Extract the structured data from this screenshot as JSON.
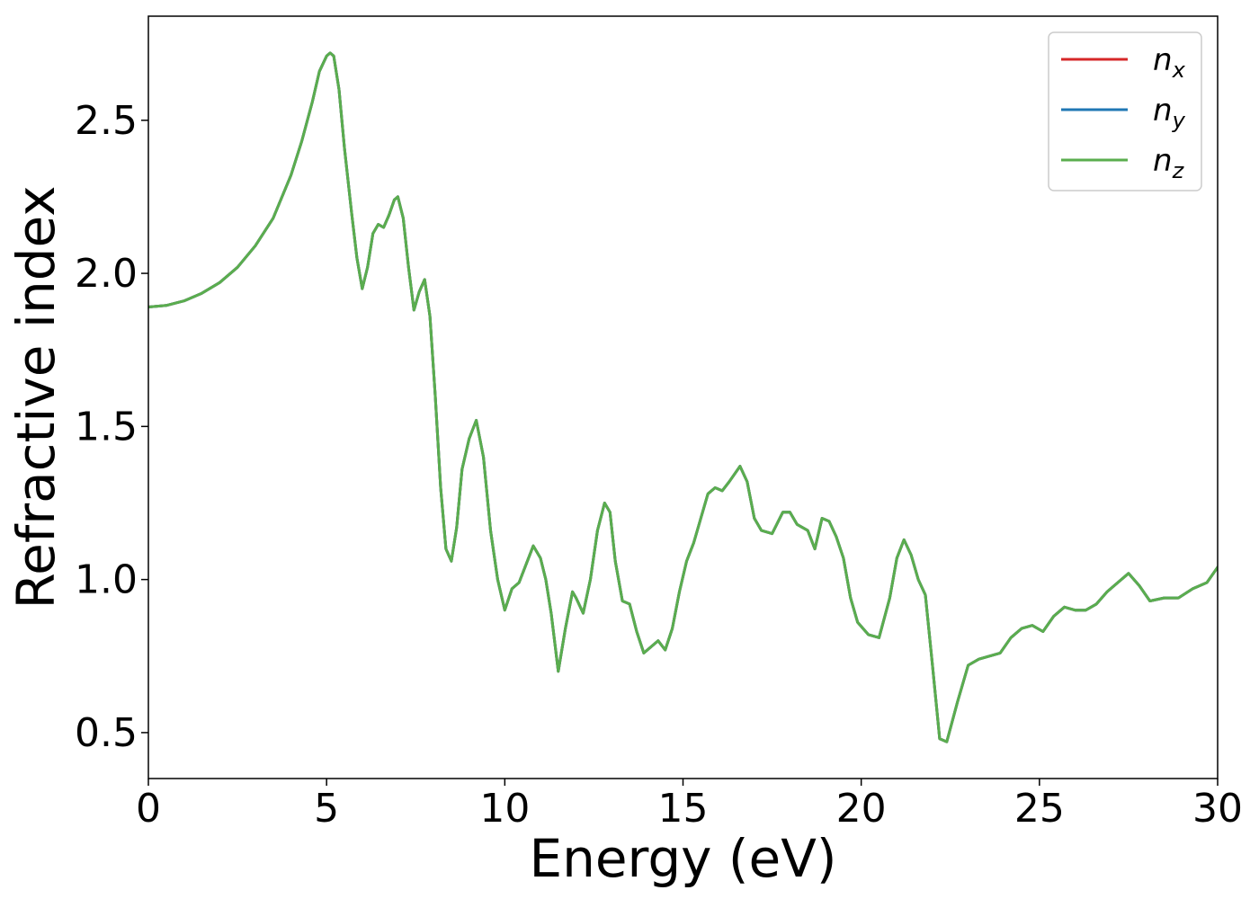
{
  "chart_data": {
    "type": "line",
    "title": "",
    "xlabel": "Energy (eV)",
    "ylabel": "Refractive index",
    "xlim": [
      0,
      30
    ],
    "ylim": [
      0.35,
      2.84
    ],
    "xticks": [
      0,
      5,
      10,
      15,
      20,
      25,
      30
    ],
    "xtick_labels": [
      "0",
      "5",
      "10",
      "15",
      "20",
      "25",
      "30"
    ],
    "yticks": [
      0.5,
      1.0,
      1.5,
      2.0,
      2.5
    ],
    "ytick_labels": [
      "0.5",
      "1.0",
      "1.5",
      "2.0",
      "2.5"
    ],
    "grid": false,
    "legend_position": "top-right",
    "series": [
      {
        "name": "n",
        "subscript": "x",
        "color": "#d62728",
        "x": [
          0,
          0.5,
          1,
          1.5,
          2,
          2.5,
          3,
          3.5,
          4,
          4.3,
          4.6,
          4.8,
          5.0,
          5.1,
          5.2,
          5.35,
          5.5,
          5.7,
          5.85,
          6.0,
          6.15,
          6.3,
          6.45,
          6.6,
          6.75,
          6.9,
          7.0,
          7.15,
          7.3,
          7.45,
          7.6,
          7.75,
          7.9,
          8.05,
          8.2,
          8.35,
          8.5,
          8.65,
          8.8,
          9.0,
          9.2,
          9.4,
          9.6,
          9.8,
          10.0,
          10.2,
          10.4,
          10.6,
          10.8,
          11.0,
          11.15,
          11.3,
          11.5,
          11.7,
          11.9,
          12.0,
          12.2,
          12.4,
          12.6,
          12.8,
          12.95,
          13.1,
          13.3,
          13.5,
          13.7,
          13.9,
          14.1,
          14.3,
          14.5,
          14.7,
          14.9,
          15.1,
          15.3,
          15.5,
          15.7,
          15.9,
          16.1,
          16.3,
          16.6,
          16.8,
          17.0,
          17.2,
          17.5,
          17.8,
          18.0,
          18.2,
          18.5,
          18.7,
          18.9,
          19.1,
          19.3,
          19.5,
          19.7,
          19.9,
          20.2,
          20.5,
          20.8,
          21.0,
          21.2,
          21.4,
          21.6,
          21.8,
          22.0,
          22.2,
          22.4,
          22.7,
          23.0,
          23.3,
          23.6,
          23.9,
          24.2,
          24.5,
          24.8,
          25.1,
          25.4,
          25.7,
          26.0,
          26.3,
          26.6,
          26.9,
          27.2,
          27.5,
          27.8,
          28.1,
          28.5,
          28.9,
          29.3,
          29.7,
          30.0
        ],
        "y": [
          1.89,
          1.895,
          1.91,
          1.935,
          1.97,
          2.02,
          2.09,
          2.18,
          2.32,
          2.43,
          2.56,
          2.66,
          2.71,
          2.72,
          2.71,
          2.6,
          2.41,
          2.2,
          2.05,
          1.95,
          2.02,
          2.13,
          2.16,
          2.15,
          2.19,
          2.24,
          2.25,
          2.18,
          2.02,
          1.88,
          1.94,
          1.98,
          1.86,
          1.6,
          1.3,
          1.1,
          1.06,
          1.17,
          1.36,
          1.46,
          1.52,
          1.4,
          1.16,
          1.0,
          0.9,
          0.97,
          0.99,
          1.05,
          1.11,
          1.07,
          1.0,
          0.89,
          0.7,
          0.84,
          0.96,
          0.94,
          0.89,
          1.0,
          1.16,
          1.25,
          1.22,
          1.06,
          0.93,
          0.92,
          0.83,
          0.76,
          0.78,
          0.8,
          0.77,
          0.84,
          0.96,
          1.06,
          1.12,
          1.2,
          1.28,
          1.3,
          1.29,
          1.32,
          1.37,
          1.32,
          1.2,
          1.16,
          1.15,
          1.22,
          1.22,
          1.18,
          1.16,
          1.1,
          1.2,
          1.19,
          1.14,
          1.07,
          0.94,
          0.86,
          0.82,
          0.81,
          0.94,
          1.07,
          1.13,
          1.08,
          1.0,
          0.95,
          0.72,
          0.48,
          0.47,
          0.6,
          0.72,
          0.74,
          0.75,
          0.76,
          0.81,
          0.84,
          0.85,
          0.83,
          0.88,
          0.91,
          0.9,
          0.9,
          0.92,
          0.96,
          0.99,
          1.02,
          0.98,
          0.93,
          0.94,
          0.94,
          0.97,
          0.99,
          1.04
        ]
      },
      {
        "name": "n",
        "subscript": "y",
        "color": "#1f77b4",
        "x": [
          0,
          0.5,
          1,
          1.5,
          2,
          2.5,
          3,
          3.5,
          4,
          4.3,
          4.6,
          4.8,
          5.0,
          5.1,
          5.2,
          5.35,
          5.5,
          5.7,
          5.85,
          6.0,
          6.15,
          6.3,
          6.45,
          6.6,
          6.75,
          6.9,
          7.0,
          7.15,
          7.3,
          7.45,
          7.6,
          7.75,
          7.9,
          8.05,
          8.2,
          8.35,
          8.5,
          8.65,
          8.8,
          9.0,
          9.2,
          9.4,
          9.6,
          9.8,
          10.0,
          10.2,
          10.4,
          10.6,
          10.8,
          11.0,
          11.15,
          11.3,
          11.5,
          11.7,
          11.9,
          12.0,
          12.2,
          12.4,
          12.6,
          12.8,
          12.95,
          13.1,
          13.3,
          13.5,
          13.7,
          13.9,
          14.1,
          14.3,
          14.5,
          14.7,
          14.9,
          15.1,
          15.3,
          15.5,
          15.7,
          15.9,
          16.1,
          16.3,
          16.6,
          16.8,
          17.0,
          17.2,
          17.5,
          17.8,
          18.0,
          18.2,
          18.5,
          18.7,
          18.9,
          19.1,
          19.3,
          19.5,
          19.7,
          19.9,
          20.2,
          20.5,
          20.8,
          21.0,
          21.2,
          21.4,
          21.6,
          21.8,
          22.0,
          22.2,
          22.4,
          22.7,
          23.0,
          23.3,
          23.6,
          23.9,
          24.2,
          24.5,
          24.8,
          25.1,
          25.4,
          25.7,
          26.0,
          26.3,
          26.6,
          26.9,
          27.2,
          27.5,
          27.8,
          28.1,
          28.5,
          28.9,
          29.3,
          29.7,
          30.0
        ],
        "y": [
          1.89,
          1.895,
          1.91,
          1.935,
          1.97,
          2.02,
          2.09,
          2.18,
          2.32,
          2.43,
          2.56,
          2.66,
          2.71,
          2.72,
          2.71,
          2.6,
          2.41,
          2.2,
          2.05,
          1.95,
          2.02,
          2.13,
          2.16,
          2.15,
          2.19,
          2.24,
          2.25,
          2.18,
          2.02,
          1.88,
          1.94,
          1.98,
          1.86,
          1.6,
          1.3,
          1.1,
          1.06,
          1.17,
          1.36,
          1.46,
          1.52,
          1.4,
          1.16,
          1.0,
          0.9,
          0.97,
          0.99,
          1.05,
          1.11,
          1.07,
          1.0,
          0.89,
          0.7,
          0.84,
          0.96,
          0.94,
          0.89,
          1.0,
          1.16,
          1.25,
          1.22,
          1.06,
          0.93,
          0.92,
          0.83,
          0.76,
          0.78,
          0.8,
          0.77,
          0.84,
          0.96,
          1.06,
          1.12,
          1.2,
          1.28,
          1.3,
          1.29,
          1.32,
          1.37,
          1.32,
          1.2,
          1.16,
          1.15,
          1.22,
          1.22,
          1.18,
          1.16,
          1.1,
          1.2,
          1.19,
          1.14,
          1.07,
          0.94,
          0.86,
          0.82,
          0.81,
          0.94,
          1.07,
          1.13,
          1.08,
          1.0,
          0.95,
          0.72,
          0.48,
          0.47,
          0.6,
          0.72,
          0.74,
          0.75,
          0.76,
          0.81,
          0.84,
          0.85,
          0.83,
          0.88,
          0.91,
          0.9,
          0.9,
          0.92,
          0.96,
          0.99,
          1.02,
          0.98,
          0.93,
          0.94,
          0.94,
          0.97,
          0.99,
          1.04
        ]
      },
      {
        "name": "n",
        "subscript": "z",
        "color": "#5aad4e",
        "x": [
          0,
          0.5,
          1,
          1.5,
          2,
          2.5,
          3,
          3.5,
          4,
          4.3,
          4.6,
          4.8,
          5.0,
          5.1,
          5.2,
          5.35,
          5.5,
          5.7,
          5.85,
          6.0,
          6.15,
          6.3,
          6.45,
          6.6,
          6.75,
          6.9,
          7.0,
          7.15,
          7.3,
          7.45,
          7.6,
          7.75,
          7.9,
          8.05,
          8.2,
          8.35,
          8.5,
          8.65,
          8.8,
          9.0,
          9.2,
          9.4,
          9.6,
          9.8,
          10.0,
          10.2,
          10.4,
          10.6,
          10.8,
          11.0,
          11.15,
          11.3,
          11.5,
          11.7,
          11.9,
          12.0,
          12.2,
          12.4,
          12.6,
          12.8,
          12.95,
          13.1,
          13.3,
          13.5,
          13.7,
          13.9,
          14.1,
          14.3,
          14.5,
          14.7,
          14.9,
          15.1,
          15.3,
          15.5,
          15.7,
          15.9,
          16.1,
          16.3,
          16.6,
          16.8,
          17.0,
          17.2,
          17.5,
          17.8,
          18.0,
          18.2,
          18.5,
          18.7,
          18.9,
          19.1,
          19.3,
          19.5,
          19.7,
          19.9,
          20.2,
          20.5,
          20.8,
          21.0,
          21.2,
          21.4,
          21.6,
          21.8,
          22.0,
          22.2,
          22.4,
          22.7,
          23.0,
          23.3,
          23.6,
          23.9,
          24.2,
          24.5,
          24.8,
          25.1,
          25.4,
          25.7,
          26.0,
          26.3,
          26.6,
          26.9,
          27.2,
          27.5,
          27.8,
          28.1,
          28.5,
          28.9,
          29.3,
          29.7,
          30.0
        ],
        "y": [
          1.89,
          1.895,
          1.91,
          1.935,
          1.97,
          2.02,
          2.09,
          2.18,
          2.32,
          2.43,
          2.56,
          2.66,
          2.71,
          2.72,
          2.71,
          2.6,
          2.41,
          2.2,
          2.05,
          1.95,
          2.02,
          2.13,
          2.16,
          2.15,
          2.19,
          2.24,
          2.25,
          2.18,
          2.02,
          1.88,
          1.94,
          1.98,
          1.86,
          1.6,
          1.3,
          1.1,
          1.06,
          1.17,
          1.36,
          1.46,
          1.52,
          1.4,
          1.16,
          1.0,
          0.9,
          0.97,
          0.99,
          1.05,
          1.11,
          1.07,
          1.0,
          0.89,
          0.7,
          0.84,
          0.96,
          0.94,
          0.89,
          1.0,
          1.16,
          1.25,
          1.22,
          1.06,
          0.93,
          0.92,
          0.83,
          0.76,
          0.78,
          0.8,
          0.77,
          0.84,
          0.96,
          1.06,
          1.12,
          1.2,
          1.28,
          1.3,
          1.29,
          1.32,
          1.37,
          1.32,
          1.2,
          1.16,
          1.15,
          1.22,
          1.22,
          1.18,
          1.16,
          1.1,
          1.2,
          1.19,
          1.14,
          1.07,
          0.94,
          0.86,
          0.82,
          0.81,
          0.94,
          1.07,
          1.13,
          1.08,
          1.0,
          0.95,
          0.72,
          0.48,
          0.47,
          0.6,
          0.72,
          0.74,
          0.75,
          0.76,
          0.81,
          0.84,
          0.85,
          0.83,
          0.88,
          0.91,
          0.9,
          0.9,
          0.92,
          0.96,
          0.99,
          1.02,
          0.98,
          0.93,
          0.94,
          0.94,
          0.97,
          0.99,
          1.04
        ]
      }
    ]
  }
}
